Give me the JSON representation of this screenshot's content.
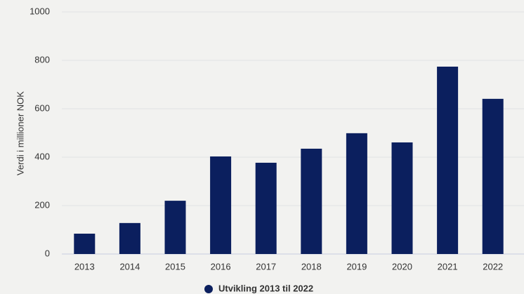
{
  "chart_data": {
    "type": "bar",
    "y_label": "Verdi i millioner NOK",
    "categories": [
      "2013",
      "2014",
      "2015",
      "2016",
      "2017",
      "2018",
      "2019",
      "2020",
      "2021",
      "2022"
    ],
    "series": [
      {
        "name": "Utvikling 2013 til 2022",
        "color": "#0b1f5e",
        "values": [
          84,
          128,
          220,
          403,
          377,
          435,
          499,
          461,
          774,
          641
        ]
      }
    ],
    "ylim": [
      0,
      1000
    ],
    "yticks": [
      0,
      200,
      400,
      600,
      800,
      1000
    ],
    "grid": true
  }
}
